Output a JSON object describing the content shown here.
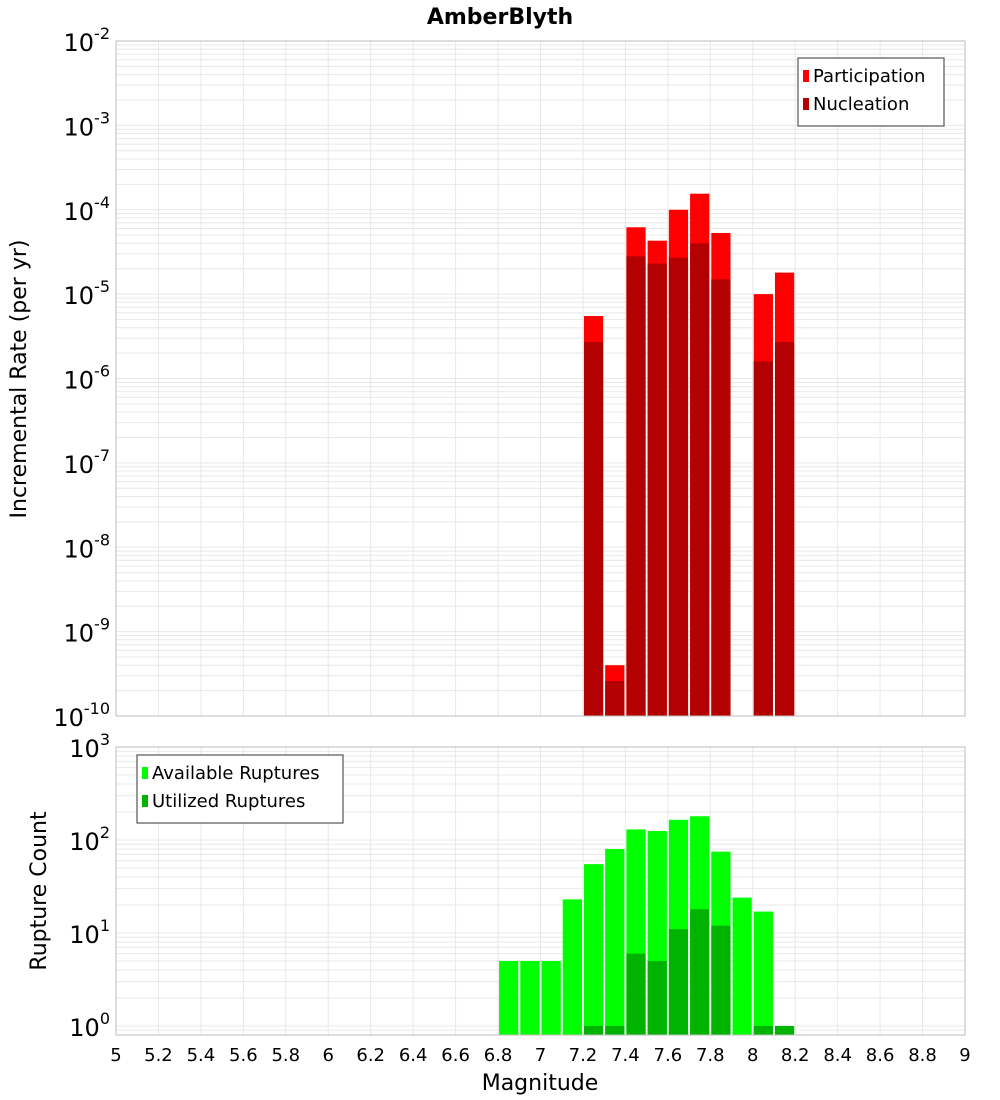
{
  "chart_data": [
    {
      "type": "bar",
      "title": "AmberBlyth",
      "ylabel": "Incremental Rate (per yr)",
      "xlabel": "",
      "xlim": [
        5,
        9
      ],
      "ylim": [
        1e-10,
        0.01
      ],
      "yscale": "log",
      "bar_width": 0.1,
      "grid": true,
      "legend_placement": "top-right",
      "series": [
        {
          "name": "Participation",
          "color": "#ff0000",
          "x": [
            7.25,
            7.35,
            7.45,
            7.55,
            7.65,
            7.75,
            7.85,
            8.05,
            8.15
          ],
          "values": [
            5.5e-06,
            4e-10,
            6.2e-05,
            4.3e-05,
            0.0001,
            0.000155,
            5.3e-05,
            1e-05,
            1.8e-05
          ]
        },
        {
          "name": "Nucleation",
          "color": "#b30000",
          "x": [
            7.25,
            7.35,
            7.45,
            7.55,
            7.65,
            7.75,
            7.85,
            8.05,
            8.15
          ],
          "values": [
            2.7e-06,
            2.6e-10,
            2.8e-05,
            2.3e-05,
            2.7e-05,
            4e-05,
            1.5e-05,
            1.6e-06,
            2.7e-06
          ]
        }
      ]
    },
    {
      "type": "bar",
      "title": "",
      "ylabel": "Rupture Count",
      "xlabel": "Magnitude",
      "xlim": [
        5,
        9
      ],
      "ylim": [
        0.8,
        1000
      ],
      "yscale": "log",
      "bar_width": 0.1,
      "grid": true,
      "legend_placement": "top-left",
      "series": [
        {
          "name": "Available Ruptures",
          "color": "#00ff00",
          "x": [
            6.85,
            6.95,
            7.05,
            7.15,
            7.25,
            7.35,
            7.45,
            7.55,
            7.65,
            7.75,
            7.85,
            7.95,
            8.05
          ],
          "values": [
            5,
            5,
            5,
            23,
            55,
            80,
            130,
            125,
            165,
            180,
            75,
            24,
            17
          ]
        },
        {
          "name": "Utilized Ruptures",
          "color": "#00b300",
          "x": [
            7.25,
            7.35,
            7.45,
            7.55,
            7.65,
            7.75,
            7.85,
            8.05,
            8.15
          ],
          "values": [
            1,
            1,
            6,
            5,
            11,
            18,
            12,
            1,
            1
          ]
        }
      ]
    }
  ],
  "x_ticks": [
    "5",
    "5.2",
    "5.4",
    "5.6",
    "5.8",
    "6",
    "6.2",
    "6.4",
    "6.6",
    "6.8",
    "7",
    "7.2",
    "7.4",
    "7.6",
    "7.8",
    "8",
    "8.2",
    "8.4",
    "8.6",
    "8.8",
    "9"
  ],
  "x_tick_values": [
    5,
    5.2,
    5.4,
    5.6,
    5.8,
    6,
    6.2,
    6.4,
    6.6,
    6.8,
    7,
    7.2,
    7.4,
    7.6,
    7.8,
    8,
    8.2,
    8.4,
    8.6,
    8.8,
    9
  ],
  "top_y_ticks": [
    {
      "base": "10",
      "exp": "-2",
      "value": 0.01
    },
    {
      "base": "10",
      "exp": "-3",
      "value": 0.001
    },
    {
      "base": "10",
      "exp": "-4",
      "value": 0.0001
    },
    {
      "base": "10",
      "exp": "-5",
      "value": 1e-05
    },
    {
      "base": "10",
      "exp": "-6",
      "value": 1e-06
    },
    {
      "base": "10",
      "exp": "-7",
      "value": 1e-07
    },
    {
      "base": "10",
      "exp": "-8",
      "value": 1e-08
    },
    {
      "base": "10",
      "exp": "-9",
      "value": 1e-09
    },
    {
      "base": "10",
      "exp": "-10",
      "value": 1e-10
    }
  ],
  "bottom_y_ticks": [
    {
      "base": "10",
      "exp": "3",
      "value": 1000
    },
    {
      "base": "10",
      "exp": "2",
      "value": 100
    },
    {
      "base": "10",
      "exp": "1",
      "value": 10
    },
    {
      "base": "10",
      "exp": "0",
      "value": 1
    }
  ],
  "colors": {
    "grid": "#e8e8e8",
    "frame": "#bdbdbd",
    "bar_gap": "#ffffff"
  }
}
